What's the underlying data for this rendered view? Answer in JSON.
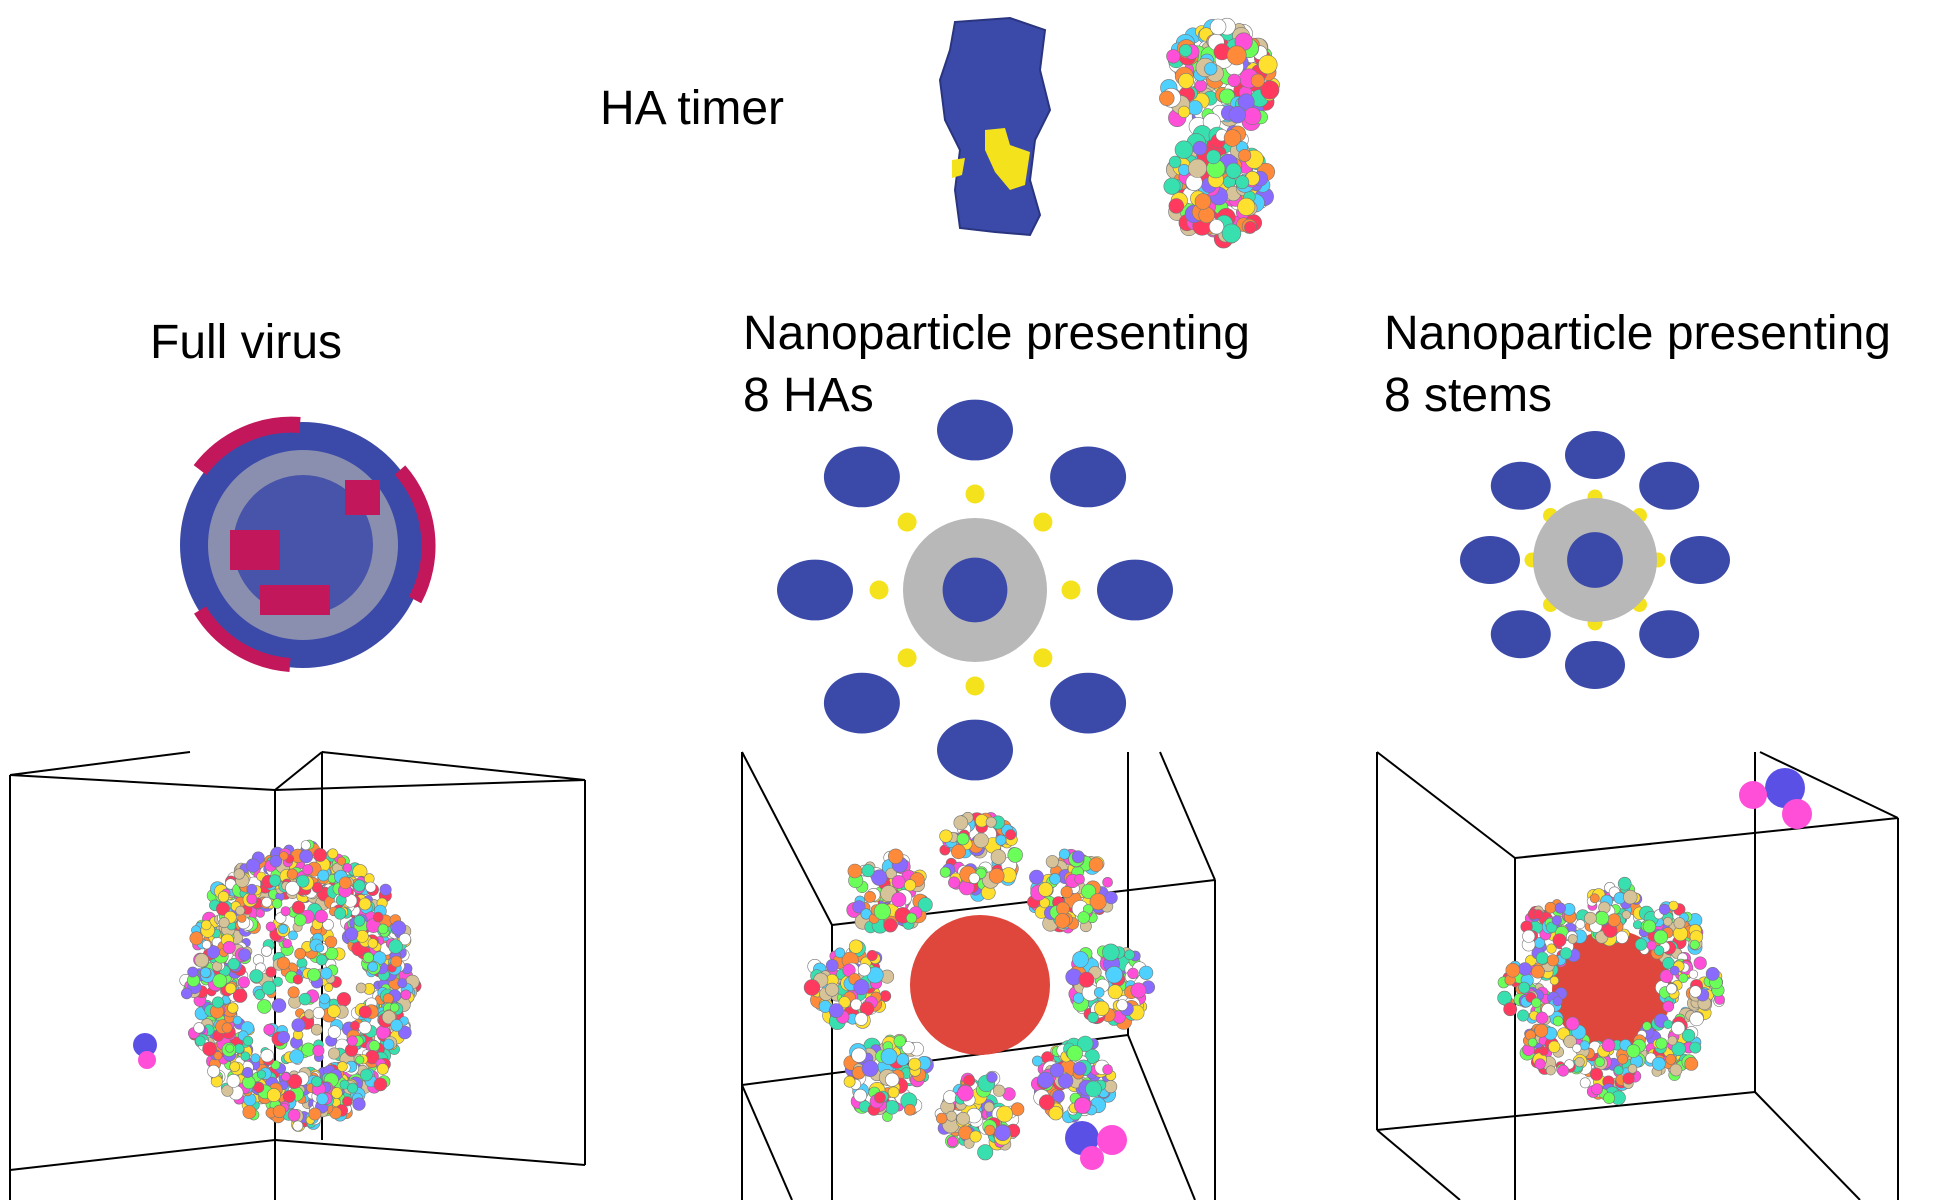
{
  "labels": {
    "ha_trimer": "HA timer",
    "full_virus": "Full virus",
    "nano_8ha_line1": "Nanoparticle presenting",
    "nano_8ha_line2": "8 HAs",
    "nano_8stems_line1": "Nanoparticle presenting",
    "nano_8stems_line2": "8 stems"
  },
  "colors": {
    "protein_blue": "#3b4aa8",
    "epitope_yellow": "#f4e21c",
    "virus_magenta": "#c2185b",
    "core_gray": "#b8b8b8",
    "core_red": "#e0473c",
    "box_line": "#000000",
    "bead_palette": [
      "#ff4fd8",
      "#4fd1ff",
      "#ffe02e",
      "#6bff5a",
      "#8a6bff",
      "#ff8a3a",
      "#ffffff",
      "#ff3a5e",
      "#38e0b0",
      "#d6c39a"
    ]
  }
}
